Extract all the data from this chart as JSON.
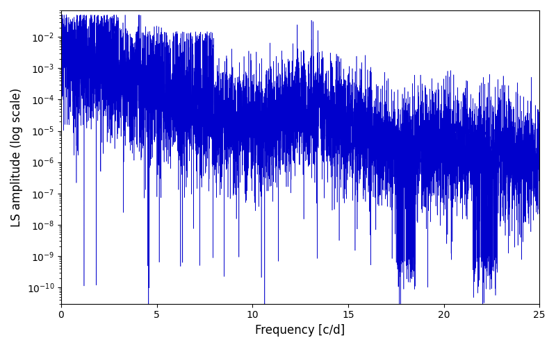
{
  "xlabel": "Frequency [c/d]",
  "ylabel": "LS amplitude (log scale)",
  "title": "",
  "xlim": [
    0,
    25
  ],
  "ylim": [
    3e-11,
    0.07
  ],
  "line_color": "#0000cc",
  "line_width": 0.4,
  "figsize": [
    8.0,
    5.0
  ],
  "dpi": 100,
  "num_points": 8000,
  "seed": 12345,
  "freq_max": 25.0,
  "background_color": "#ffffff"
}
